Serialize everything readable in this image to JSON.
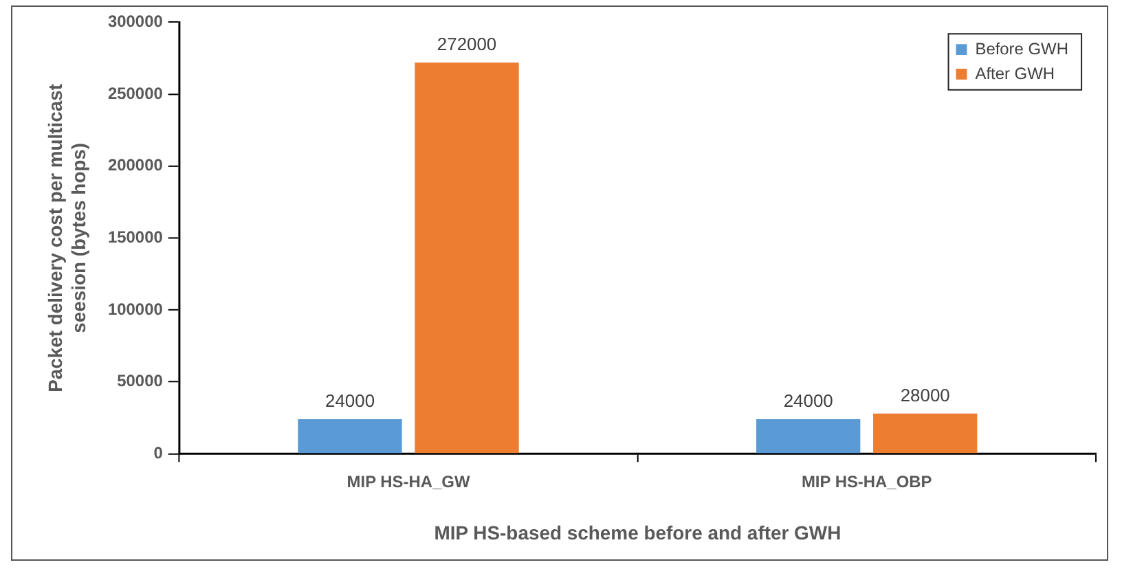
{
  "chart_data": {
    "type": "bar",
    "xlabel": "MIP HS-based scheme before and after GWH",
    "ylabel": "Packet delivery cost per multicast seesion (bytes hops)",
    "categories": [
      "MIP HS-HA_GW",
      "MIP HS-HA_OBP"
    ],
    "series": [
      {
        "name": "Before GWH",
        "color": "#5b9bd5",
        "values": [
          24000,
          24000
        ]
      },
      {
        "name": "After GWH",
        "color": "#ed7d31",
        "values": [
          272000,
          28000
        ]
      }
    ],
    "ylim": [
      0,
      300000
    ],
    "yticks": [
      0,
      50000,
      100000,
      150000,
      200000,
      250000,
      300000
    ],
    "grid": false,
    "legend": "top right",
    "data_labels": true
  }
}
